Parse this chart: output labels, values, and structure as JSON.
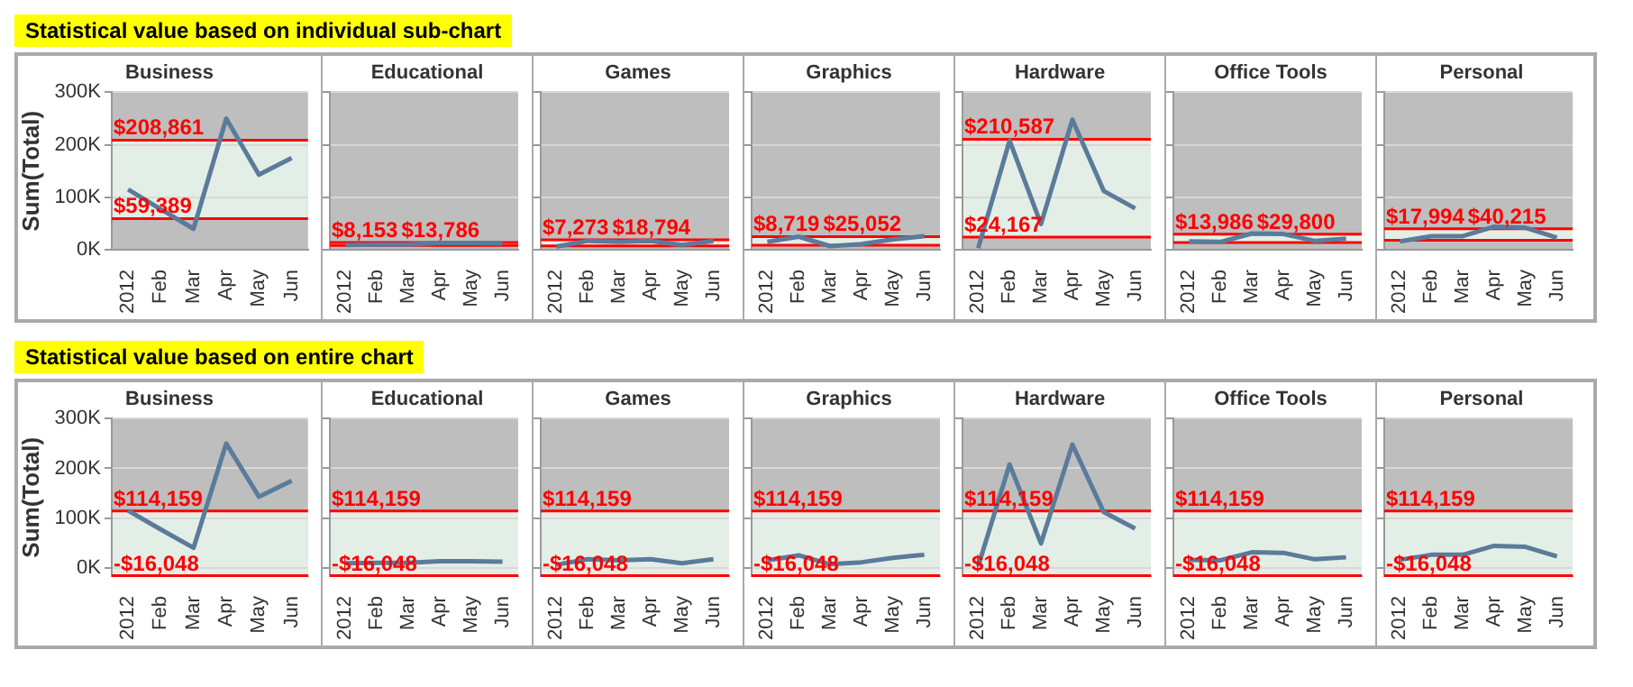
{
  "chart_data": [
    {
      "type": "line",
      "title": "Business",
      "annotations": [
        "Statistical value based on individual sub-chart"
      ],
      "ylabel": "Sum(Total)",
      "categories": [
        "2012",
        "Feb",
        "Mar",
        "Apr",
        "May",
        "Jun"
      ],
      "series": [
        {
          "color": "#5b7b9b",
          "values": [
            115000,
            77000,
            40000,
            250000,
            143000,
            175000
          ]
        }
      ],
      "ylim": [
        0,
        300000
      ],
      "yticks": [
        {
          "value": 0,
          "label": "0K"
        },
        {
          "value": 100000,
          "label": "100K"
        },
        {
          "value": 200000,
          "label": "200K"
        },
        {
          "value": 300000,
          "label": "300K"
        }
      ],
      "grid": "y",
      "legend": false,
      "marker": "none",
      "bands": [
        {
          "axis": "y",
          "from": 59389,
          "to": 208861,
          "color": "#e3efe6"
        }
      ],
      "ref_lines": [
        {
          "axis": "y",
          "value": 208861,
          "label": "$208,861",
          "color": "#ff0000"
        },
        {
          "axis": "y",
          "value": 59389,
          "label": "$59,389",
          "color": "#ff0000"
        }
      ]
    },
    {
      "type": "line",
      "title": "Educational",
      "categories": [
        "2012",
        "Feb",
        "Mar",
        "Apr",
        "May",
        "Jun"
      ],
      "series": [
        {
          "color": "#5b7b9b",
          "values": [
            9000,
            10000,
            10000,
            13000,
            13000,
            12000
          ]
        }
      ],
      "ylim": [
        0,
        300000
      ],
      "yticks": [
        {
          "value": 0,
          "label": null
        },
        {
          "value": 100000,
          "label": null
        },
        {
          "value": 200000,
          "label": null
        },
        {
          "value": 300000,
          "label": null
        }
      ],
      "tick_labels": "x",
      "grid": "y",
      "legend": false,
      "marker": "none",
      "bands": [
        {
          "axis": "y",
          "from": 8153,
          "to": 13786,
          "color": "#e3efe6"
        }
      ],
      "ref_lines": [
        {
          "axis": "y",
          "value": 8153,
          "label": "$8,153",
          "color": "#ff0000"
        },
        {
          "axis": "y",
          "value": 13786,
          "label": "$13,786",
          "color": "#ff0000"
        }
      ]
    },
    {
      "type": "line",
      "title": "Games",
      "categories": [
        "2012",
        "Feb",
        "Mar",
        "Apr",
        "May",
        "Jun"
      ],
      "series": [
        {
          "color": "#5b7b9b",
          "values": [
            6000,
            17000,
            15000,
            17000,
            9000,
            17000
          ]
        }
      ],
      "ylim": [
        0,
        300000
      ],
      "yticks": [
        {
          "value": 0,
          "label": null
        },
        {
          "value": 100000,
          "label": null
        },
        {
          "value": 200000,
          "label": null
        },
        {
          "value": 300000,
          "label": null
        }
      ],
      "tick_labels": "x",
      "grid": "y",
      "legend": false,
      "marker": "none",
      "bands": [
        {
          "axis": "y",
          "from": 7273,
          "to": 18794,
          "color": "#e3efe6"
        }
      ],
      "ref_lines": [
        {
          "axis": "y",
          "value": 7273,
          "label": "$7,273",
          "color": "#ff0000"
        },
        {
          "axis": "y",
          "value": 18794,
          "label": "$18,794",
          "color": "#ff0000"
        }
      ]
    },
    {
      "type": "line",
      "title": "Graphics",
      "categories": [
        "2012",
        "Feb",
        "Mar",
        "Apr",
        "May",
        "Jun"
      ],
      "series": [
        {
          "color": "#5b7b9b",
          "values": [
            15000,
            25000,
            7000,
            11000,
            20000,
            26000
          ]
        }
      ],
      "ylim": [
        0,
        300000
      ],
      "yticks": [
        {
          "value": 0,
          "label": null
        },
        {
          "value": 100000,
          "label": null
        },
        {
          "value": 200000,
          "label": null
        },
        {
          "value": 300000,
          "label": null
        }
      ],
      "tick_labels": "x",
      "grid": "y",
      "legend": false,
      "marker": "none",
      "bands": [
        {
          "axis": "y",
          "from": 8719,
          "to": 25052,
          "color": "#e3efe6"
        }
      ],
      "ref_lines": [
        {
          "axis": "y",
          "value": 8719,
          "label": "$8,719",
          "color": "#ff0000"
        },
        {
          "axis": "y",
          "value": 25052,
          "label": "$25,052",
          "color": "#ff0000"
        }
      ]
    },
    {
      "type": "line",
      "title": "Hardware",
      "categories": [
        "2012",
        "Feb",
        "Mar",
        "Apr",
        "May",
        "Jun"
      ],
      "series": [
        {
          "color": "#5b7b9b",
          "values": [
            3000,
            208000,
            49000,
            248000,
            112000,
            79000
          ]
        }
      ],
      "ylim": [
        0,
        300000
      ],
      "yticks": [
        {
          "value": 0,
          "label": null
        },
        {
          "value": 100000,
          "label": null
        },
        {
          "value": 200000,
          "label": null
        },
        {
          "value": 300000,
          "label": null
        }
      ],
      "tick_labels": "x",
      "grid": "y",
      "legend": false,
      "marker": "none",
      "bands": [
        {
          "axis": "y",
          "from": 24167,
          "to": 210587,
          "color": "#e3efe6"
        }
      ],
      "ref_lines": [
        {
          "axis": "y",
          "value": 210587,
          "label": "$210,587",
          "color": "#ff0000"
        },
        {
          "axis": "y",
          "value": 24167,
          "label": "$24,167",
          "color": "#ff0000"
        }
      ]
    },
    {
      "type": "line",
      "title": "Office Tools",
      "categories": [
        "2012",
        "Feb",
        "Mar",
        "Apr",
        "May",
        "Jun"
      ],
      "series": [
        {
          "color": "#5b7b9b",
          "values": [
            16000,
            15000,
            31000,
            30000,
            17000,
            21000
          ]
        }
      ],
      "ylim": [
        0,
        300000
      ],
      "yticks": [
        {
          "value": 0,
          "label": null
        },
        {
          "value": 100000,
          "label": null
        },
        {
          "value": 200000,
          "label": null
        },
        {
          "value": 300000,
          "label": null
        }
      ],
      "tick_labels": "x",
      "grid": "y",
      "legend": false,
      "marker": "none",
      "bands": [
        {
          "axis": "y",
          "from": 13986,
          "to": 29800,
          "color": "#e3efe6"
        }
      ],
      "ref_lines": [
        {
          "axis": "y",
          "value": 13986,
          "label": "$13,986",
          "color": "#ff0000"
        },
        {
          "axis": "y",
          "value": 29800,
          "label": "$29,800",
          "color": "#ff0000"
        }
      ]
    },
    {
      "type": "line",
      "title": "Personal",
      "categories": [
        "2012",
        "Feb",
        "Mar",
        "Apr",
        "May",
        "Jun"
      ],
      "series": [
        {
          "color": "#5b7b9b",
          "values": [
            16000,
            26000,
            26000,
            44000,
            42000,
            23000
          ]
        }
      ],
      "ylim": [
        0,
        300000
      ],
      "yticks": [
        {
          "value": 0,
          "label": null
        },
        {
          "value": 100000,
          "label": null
        },
        {
          "value": 200000,
          "label": null
        },
        {
          "value": 300000,
          "label": null
        }
      ],
      "tick_labels": "x",
      "grid": "y",
      "legend": false,
      "marker": "none",
      "bands": [
        {
          "axis": "y",
          "from": 17994,
          "to": 40215,
          "color": "#e3efe6"
        }
      ],
      "ref_lines": [
        {
          "axis": "y",
          "value": 17994,
          "label": "$17,994",
          "color": "#ff0000"
        },
        {
          "axis": "y",
          "value": 40215,
          "label": "$40,215",
          "color": "#ff0000"
        }
      ]
    },
    {
      "type": "line",
      "title": "Business",
      "annotations": [
        "Statistical value based on entire chart"
      ],
      "ylabel": "Sum(Total)",
      "categories": [
        "2012",
        "Feb",
        "Mar",
        "Apr",
        "May",
        "Jun"
      ],
      "series": [
        {
          "color": "#5b7b9b",
          "values": [
            115000,
            77000,
            40000,
            250000,
            143000,
            175000
          ]
        }
      ],
      "ylim": [
        -17000,
        300000
      ],
      "yticks": [
        {
          "value": 0,
          "label": "0K"
        },
        {
          "value": 100000,
          "label": "100K"
        },
        {
          "value": 200000,
          "label": "200K"
        },
        {
          "value": 300000,
          "label": "300K"
        }
      ],
      "grid": "y",
      "legend": false,
      "marker": "none",
      "bands": [
        {
          "axis": "y",
          "from": -16048,
          "to": 114159,
          "color": "#e3efe6"
        }
      ],
      "ref_lines": [
        {
          "axis": "y",
          "value": 114159,
          "label": "$114,159",
          "color": "#ff0000"
        },
        {
          "axis": "y",
          "value": -16048,
          "label": "-$16,048",
          "color": "#ff0000"
        }
      ]
    },
    {
      "type": "line",
      "title": "Educational",
      "categories": [
        "2012",
        "Feb",
        "Mar",
        "Apr",
        "May",
        "Jun"
      ],
      "series": [
        {
          "color": "#5b7b9b",
          "values": [
            9000,
            10000,
            10000,
            13000,
            13000,
            12000
          ]
        }
      ],
      "ylim": [
        -17000,
        300000
      ],
      "yticks": [
        {
          "value": 0,
          "label": null
        },
        {
          "value": 100000,
          "label": null
        },
        {
          "value": 200000,
          "label": null
        },
        {
          "value": 300000,
          "label": null
        }
      ],
      "tick_labels": "x",
      "grid": "y",
      "legend": false,
      "marker": "none",
      "bands": [
        {
          "axis": "y",
          "from": -16048,
          "to": 114159,
          "color": "#e3efe6"
        }
      ],
      "ref_lines": [
        {
          "axis": "y",
          "value": 114159,
          "label": "$114,159",
          "color": "#ff0000"
        },
        {
          "axis": "y",
          "value": -16048,
          "label": "-$16,048",
          "color": "#ff0000"
        }
      ]
    },
    {
      "type": "line",
      "title": "Games",
      "categories": [
        "2012",
        "Feb",
        "Mar",
        "Apr",
        "May",
        "Jun"
      ],
      "series": [
        {
          "color": "#5b7b9b",
          "values": [
            6000,
            17000,
            15000,
            17000,
            9000,
            17000
          ]
        }
      ],
      "ylim": [
        -17000,
        300000
      ],
      "yticks": [
        {
          "value": 0,
          "label": null
        },
        {
          "value": 100000,
          "label": null
        },
        {
          "value": 200000,
          "label": null
        },
        {
          "value": 300000,
          "label": null
        }
      ],
      "tick_labels": "x",
      "grid": "y",
      "legend": false,
      "marker": "none",
      "bands": [
        {
          "axis": "y",
          "from": -16048,
          "to": 114159,
          "color": "#e3efe6"
        }
      ],
      "ref_lines": [
        {
          "axis": "y",
          "value": 114159,
          "label": "$114,159",
          "color": "#ff0000"
        },
        {
          "axis": "y",
          "value": -16048,
          "label": "-$16,048",
          "color": "#ff0000"
        }
      ]
    },
    {
      "type": "line",
      "title": "Graphics",
      "categories": [
        "2012",
        "Feb",
        "Mar",
        "Apr",
        "May",
        "Jun"
      ],
      "series": [
        {
          "color": "#5b7b9b",
          "values": [
            15000,
            25000,
            7000,
            11000,
            20000,
            26000
          ]
        }
      ],
      "ylim": [
        -17000,
        300000
      ],
      "yticks": [
        {
          "value": 0,
          "label": null
        },
        {
          "value": 100000,
          "label": null
        },
        {
          "value": 200000,
          "label": null
        },
        {
          "value": 300000,
          "label": null
        }
      ],
      "tick_labels": "x",
      "grid": "y",
      "legend": false,
      "marker": "none",
      "bands": [
        {
          "axis": "y",
          "from": -16048,
          "to": 114159,
          "color": "#e3efe6"
        }
      ],
      "ref_lines": [
        {
          "axis": "y",
          "value": 114159,
          "label": "$114,159",
          "color": "#ff0000"
        },
        {
          "axis": "y",
          "value": -16048,
          "label": "-$16,048",
          "color": "#ff0000"
        }
      ]
    },
    {
      "type": "line",
      "title": "Hardware",
      "categories": [
        "2012",
        "Feb",
        "Mar",
        "Apr",
        "May",
        "Jun"
      ],
      "series": [
        {
          "color": "#5b7b9b",
          "values": [
            3000,
            208000,
            49000,
            248000,
            112000,
            79000
          ]
        }
      ],
      "ylim": [
        -17000,
        300000
      ],
      "yticks": [
        {
          "value": 0,
          "label": null
        },
        {
          "value": 100000,
          "label": null
        },
        {
          "value": 200000,
          "label": null
        },
        {
          "value": 300000,
          "label": null
        }
      ],
      "tick_labels": "x",
      "grid": "y",
      "legend": false,
      "marker": "none",
      "bands": [
        {
          "axis": "y",
          "from": -16048,
          "to": 114159,
          "color": "#e3efe6"
        }
      ],
      "ref_lines": [
        {
          "axis": "y",
          "value": 114159,
          "label": "$114,159",
          "color": "#ff0000"
        },
        {
          "axis": "y",
          "value": -16048,
          "label": "-$16,048",
          "color": "#ff0000"
        }
      ]
    },
    {
      "type": "line",
      "title": "Office Tools",
      "categories": [
        "2012",
        "Feb",
        "Mar",
        "Apr",
        "May",
        "Jun"
      ],
      "series": [
        {
          "color": "#5b7b9b",
          "values": [
            16000,
            15000,
            31000,
            30000,
            17000,
            21000
          ]
        }
      ],
      "ylim": [
        -17000,
        300000
      ],
      "yticks": [
        {
          "value": 0,
          "label": null
        },
        {
          "value": 100000,
          "label": null
        },
        {
          "value": 200000,
          "label": null
        },
        {
          "value": 300000,
          "label": null
        }
      ],
      "tick_labels": "x",
      "grid": "y",
      "legend": false,
      "marker": "none",
      "bands": [
        {
          "axis": "y",
          "from": -16048,
          "to": 114159,
          "color": "#e3efe6"
        }
      ],
      "ref_lines": [
        {
          "axis": "y",
          "value": 114159,
          "label": "$114,159",
          "color": "#ff0000"
        },
        {
          "axis": "y",
          "value": -16048,
          "label": "-$16,048",
          "color": "#ff0000"
        }
      ]
    },
    {
      "type": "line",
      "title": "Personal",
      "categories": [
        "2012",
        "Feb",
        "Mar",
        "Apr",
        "May",
        "Jun"
      ],
      "series": [
        {
          "color": "#5b7b9b",
          "values": [
            16000,
            26000,
            26000,
            44000,
            42000,
            23000
          ]
        }
      ],
      "ylim": [
        -17000,
        300000
      ],
      "yticks": [
        {
          "value": 0,
          "label": null
        },
        {
          "value": 100000,
          "label": null
        },
        {
          "value": 200000,
          "label": null
        },
        {
          "value": 300000,
          "label": null
        }
      ],
      "tick_labels": "x",
      "grid": "y",
      "legend": false,
      "marker": "none",
      "bands": [
        {
          "axis": "y",
          "from": -16048,
          "to": 114159,
          "color": "#e3efe6"
        }
      ],
      "ref_lines": [
        {
          "axis": "y",
          "value": 114159,
          "label": "$114,159",
          "color": "#ff0000"
        },
        {
          "axis": "y",
          "value": -16048,
          "label": "-$16,048",
          "color": "#ff0000"
        }
      ]
    }
  ]
}
